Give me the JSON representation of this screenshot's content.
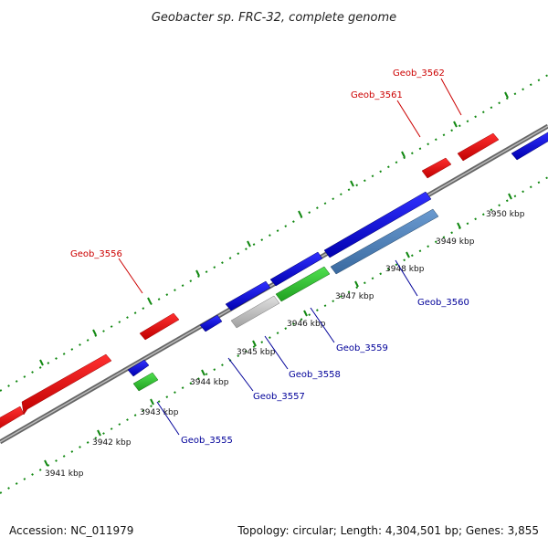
{
  "title": "Geobacter sp. FRC-32, complete genome",
  "footer": {
    "accession": "Accession: NC_011979",
    "summary": "Topology: circular; Length: 4,304,501 bp; Genes: 3,855"
  },
  "colors": {
    "forward_label": "#cc0000",
    "reverse_label": "#000099",
    "backbone": "#888888",
    "ticks": "#118811"
  },
  "scale_labels": [
    "3941 kbp",
    "3942 kbp",
    "3943 kbp",
    "3944 kbp",
    "3945 kbp",
    "3946 kbp",
    "3947 kbp",
    "3948 kbp",
    "3949 kbp",
    "3950 kbp"
  ],
  "gene_labels": {
    "forward": [
      "Geob_3556",
      "Geob_3561",
      "Geob_3562"
    ],
    "reverse": [
      "Geob_3555",
      "Geob_3557",
      "Geob_3558",
      "Geob_3559",
      "Geob_3560"
    ]
  }
}
